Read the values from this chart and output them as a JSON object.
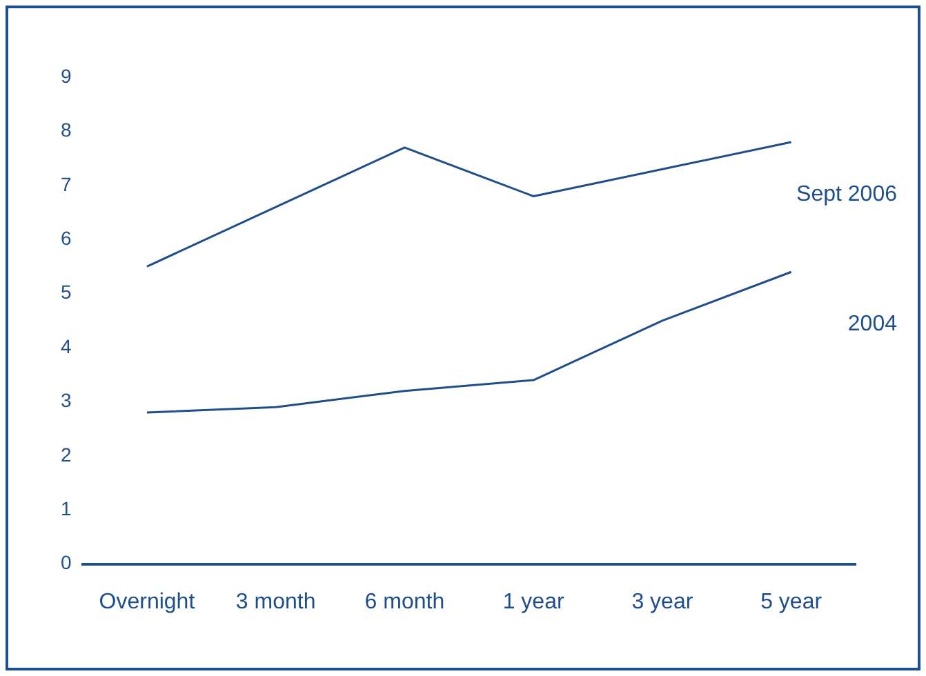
{
  "chart_data": {
    "type": "line",
    "categories": [
      "Overnight",
      "3 month",
      "6 month",
      "1 year",
      "3 year",
      "5 year"
    ],
    "series": [
      {
        "name": "Sept 2006",
        "color": "#1f4e8c",
        "values": [
          5.5,
          6.6,
          7.7,
          6.8,
          7.3,
          7.8
        ]
      },
      {
        "name": "2004",
        "color": "#1f4e8c",
        "values": [
          2.8,
          2.9,
          3.2,
          3.4,
          4.5,
          5.4
        ]
      }
    ],
    "ylim": [
      0,
      9
    ],
    "yticks": [
      0,
      1,
      2,
      3,
      4,
      5,
      6,
      7,
      8,
      9
    ],
    "grid": false,
    "legend": false,
    "marker": "none",
    "line_style": "solid"
  }
}
